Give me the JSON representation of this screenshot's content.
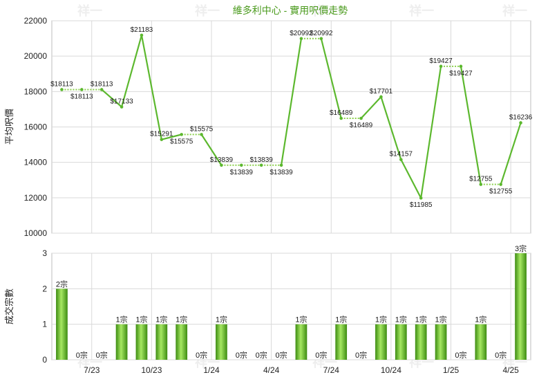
{
  "title": "維多利中心 - 實用呎價走勢",
  "colors": {
    "line": "#5cb82e",
    "line_dotted": "#8ad04a",
    "bar_light": "#9fe05a",
    "bar_dark": "#3d8c12",
    "title": "#4a9a1c",
    "grid": "#d9d9d9"
  },
  "watermark": "祥一",
  "chart_data": [
    {
      "type": "line",
      "ylabel": "平均呎價",
      "ylim": [
        10000,
        22000
      ],
      "yticks": [
        "10000",
        "12000",
        "14000",
        "16000",
        "18000",
        "20000",
        "22000"
      ],
      "grid": true,
      "x_count": 24,
      "series": [
        {
          "values": [
            18113,
            18113,
            18113,
            17133,
            21183,
            15291,
            15575,
            15575,
            13839,
            13839,
            13839,
            13839,
            20992,
            20992,
            16489,
            16489,
            17701,
            14157,
            11985,
            19427,
            19427,
            12755,
            12755,
            16236
          ],
          "labels": [
            "$18113",
            "$18113",
            "$18113",
            "$17133",
            "$21183",
            "$15291",
            "$15575",
            "$15575",
            "$13839",
            "$13839",
            "$13839",
            "$13839",
            "$20992",
            "$20992",
            "$16489",
            "$16489",
            "$17701",
            "$14157",
            "$11985",
            "$19427",
            "$19427",
            "$12755",
            "$12755",
            "$16236"
          ],
          "carried": [
            false,
            true,
            false,
            false,
            false,
            false,
            true,
            false,
            false,
            true,
            false,
            true,
            false,
            false,
            false,
            true,
            false,
            false,
            false,
            false,
            true,
            false,
            true,
            false
          ]
        }
      ]
    },
    {
      "type": "bar",
      "ylabel": "成交宗數",
      "ylim": [
        0,
        3
      ],
      "yticks": [
        "0",
        "1",
        "2",
        "3"
      ],
      "grid": true,
      "categories": [
        "7/23",
        "10/23",
        "1/24",
        "4/24",
        "7/24",
        "10/24",
        "1/25",
        "4/25"
      ],
      "values": [
        2,
        0,
        0,
        1,
        1,
        1,
        1,
        0,
        1,
        0,
        0,
        0,
        1,
        0,
        1,
        0,
        1,
        1,
        1,
        1,
        0,
        1,
        0,
        3
      ],
      "labels": [
        "2宗",
        "0宗",
        "0宗",
        "1宗",
        "1宗",
        "1宗",
        "1宗",
        "0宗",
        "1宗",
        "0宗",
        "0宗",
        "0宗",
        "1宗",
        "0宗",
        "1宗",
        "0宗",
        "1宗",
        "1宗",
        "1宗",
        "1宗",
        "0宗",
        "1宗",
        "0宗",
        "3宗"
      ]
    }
  ]
}
